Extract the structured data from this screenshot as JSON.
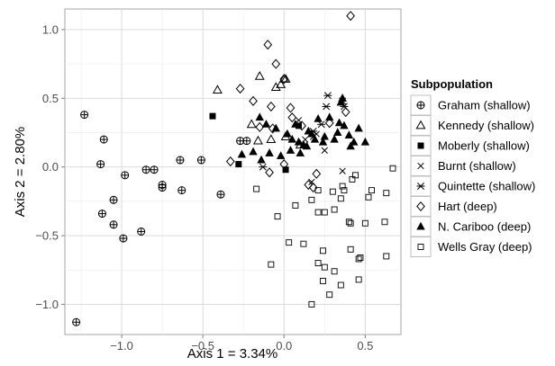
{
  "chart_data": {
    "type": "scatter",
    "xlabel": "Axis 1 = 3.34%",
    "ylabel": "Axis 2 = 2.80%",
    "xlim": [
      -1.35,
      0.72
    ],
    "ylim": [
      -1.22,
      1.15
    ],
    "x_ticks": [
      -1.0,
      -0.5,
      0.0,
      0.5
    ],
    "x_tick_labels": [
      "−1.0",
      "−0.5",
      "0.0",
      "0.5"
    ],
    "y_ticks": [
      -1.0,
      -0.5,
      0.0,
      0.5,
      1.0
    ],
    "y_tick_labels": [
      "−1.0",
      "−0.5",
      "0.0",
      "0.5",
      "1.0"
    ],
    "grid": true,
    "legend": {
      "title": "Subpopulation",
      "position": "right"
    },
    "series": [
      {
        "name": "Graham (shallow)",
        "marker": "circle-plus",
        "points": [
          [
            -1.28,
            -1.13
          ],
          [
            -1.23,
            0.38
          ],
          [
            -1.11,
            0.2
          ],
          [
            -1.13,
            0.02
          ],
          [
            -0.98,
            -0.06
          ],
          [
            -0.85,
            -0.02
          ],
          [
            -0.8,
            -0.02
          ],
          [
            -0.75,
            -0.13
          ],
          [
            -0.75,
            -0.15
          ],
          [
            -0.64,
            0.05
          ],
          [
            -0.63,
            -0.17
          ],
          [
            -0.51,
            0.05
          ],
          [
            -0.39,
            -0.2
          ],
          [
            -1.12,
            -0.34
          ],
          [
            -1.05,
            -0.24
          ],
          [
            -1.05,
            -0.42
          ],
          [
            -0.99,
            -0.52
          ],
          [
            -0.88,
            -0.47
          ],
          [
            -0.27,
            0.19
          ],
          [
            -0.23,
            0.19
          ]
        ]
      },
      {
        "name": "Kennedy (shallow)",
        "marker": "triangle-open",
        "points": [
          [
            -0.41,
            0.56
          ],
          [
            -0.15,
            0.66
          ],
          [
            -0.05,
            0.58
          ],
          [
            -0.02,
            0.6
          ],
          [
            0.0,
            0.64
          ],
          [
            0.01,
            0.64
          ],
          [
            -0.2,
            0.31
          ],
          [
            -0.16,
            0.19
          ],
          [
            -0.08,
            0.2
          ],
          [
            0.01,
            0.22
          ],
          [
            0.1,
            0.16
          ]
        ]
      },
      {
        "name": "Moberly (shallow)",
        "marker": "square-filled",
        "points": [
          [
            -0.44,
            0.37
          ],
          [
            0.01,
            -0.02
          ],
          [
            -0.28,
            0.02
          ],
          [
            0.09,
            0.3
          ]
        ]
      },
      {
        "name": "Burnt (shallow)",
        "marker": "x",
        "points": [
          [
            0.09,
            0.34
          ],
          [
            0.13,
            0.2
          ],
          [
            0.2,
            0.24
          ],
          [
            0.25,
            0.12
          ],
          [
            0.17,
            -0.11
          ],
          [
            0.36,
            -0.03
          ],
          [
            0.18,
            0.22
          ]
        ]
      },
      {
        "name": "Quintette (shallow)",
        "marker": "asterisk",
        "points": [
          [
            0.27,
            0.52
          ],
          [
            0.26,
            0.44
          ],
          [
            0.23,
            0.31
          ],
          [
            0.36,
            0.48
          ],
          [
            0.37,
            0.44
          ],
          [
            -0.13,
            0.0
          ],
          [
            0.18,
            0.26
          ]
        ]
      },
      {
        "name": "Hart (deep)",
        "marker": "diamond-open",
        "points": [
          [
            0.41,
            1.1
          ],
          [
            -0.1,
            0.89
          ],
          [
            -0.05,
            0.75
          ],
          [
            0.0,
            0.64
          ],
          [
            -0.27,
            0.57
          ],
          [
            -0.19,
            0.48
          ],
          [
            -0.08,
            0.44
          ],
          [
            0.04,
            0.43
          ],
          [
            0.05,
            0.36
          ],
          [
            0.11,
            0.3
          ],
          [
            -0.15,
            0.29
          ],
          [
            -0.07,
            0.28
          ],
          [
            0.38,
            0.4
          ],
          [
            0.28,
            0.32
          ],
          [
            -0.33,
            0.04
          ],
          [
            -0.09,
            -0.04
          ],
          [
            0.0,
            0.02
          ],
          [
            0.2,
            -0.05
          ],
          [
            0.15,
            -0.13
          ],
          [
            0.18,
            -0.15
          ]
        ]
      },
      {
        "name": "N. Cariboo (deep)",
        "marker": "triangle-filled",
        "points": [
          [
            0.36,
            0.5
          ],
          [
            0.35,
            0.47
          ],
          [
            -0.15,
            0.36
          ],
          [
            -0.11,
            0.31
          ],
          [
            -0.05,
            0.28
          ],
          [
            0.02,
            0.24
          ],
          [
            0.05,
            0.2
          ],
          [
            0.07,
            0.31
          ],
          [
            0.09,
            0.18
          ],
          [
            0.12,
            0.16
          ],
          [
            0.15,
            0.26
          ],
          [
            0.17,
            0.24
          ],
          [
            0.19,
            0.2
          ],
          [
            0.21,
            0.35
          ],
          [
            0.24,
            0.18
          ],
          [
            0.28,
            0.36
          ],
          [
            0.31,
            0.2
          ],
          [
            0.34,
            0.32
          ],
          [
            0.37,
            0.3
          ],
          [
            0.4,
            0.23
          ],
          [
            0.43,
            0.18
          ],
          [
            0.46,
            0.28
          ],
          [
            0.5,
            0.18
          ],
          [
            -0.26,
            0.09
          ],
          [
            -0.19,
            0.11
          ],
          [
            -0.14,
            0.05
          ],
          [
            -0.09,
            0.1
          ],
          [
            -0.02,
            0.08
          ],
          [
            0.04,
            0.12
          ],
          [
            0.1,
            0.1
          ],
          [
            0.14,
            0.15
          ],
          [
            0.25,
            0.22
          ],
          [
            0.33,
            0.25
          ],
          [
            0.41,
            0.15
          ]
        ]
      },
      {
        "name": "Wells Gray (deep)",
        "marker": "square-open",
        "points": [
          [
            0.67,
            -0.01
          ],
          [
            -0.17,
            -0.16
          ],
          [
            -0.04,
            -0.36
          ],
          [
            0.07,
            -0.28
          ],
          [
            0.17,
            -0.24
          ],
          [
            0.21,
            -0.17
          ],
          [
            0.3,
            -0.18
          ],
          [
            0.35,
            -0.23
          ],
          [
            0.36,
            -0.14
          ],
          [
            0.44,
            -0.06
          ],
          [
            0.54,
            -0.17
          ],
          [
            0.63,
            -0.19
          ],
          [
            0.21,
            -0.33
          ],
          [
            0.25,
            -0.33
          ],
          [
            0.31,
            -0.31
          ],
          [
            0.4,
            -0.4
          ],
          [
            0.41,
            -0.41
          ],
          [
            0.5,
            -0.41
          ],
          [
            0.62,
            -0.4
          ],
          [
            0.03,
            -0.55
          ],
          [
            0.12,
            -0.56
          ],
          [
            0.24,
            -0.61
          ],
          [
            0.21,
            -0.7
          ],
          [
            0.25,
            -0.73
          ],
          [
            0.31,
            -0.76
          ],
          [
            0.41,
            -0.6
          ],
          [
            0.46,
            -0.67
          ],
          [
            0.47,
            -0.66
          ],
          [
            0.63,
            -0.65
          ],
          [
            0.24,
            -0.83
          ],
          [
            0.46,
            -0.82
          ],
          [
            0.35,
            -0.86
          ],
          [
            0.28,
            -0.93
          ],
          [
            -0.08,
            -0.71
          ],
          [
            0.17,
            -1.0
          ],
          [
            0.37,
            -0.17
          ],
          [
            0.42,
            -0.09
          ],
          [
            0.52,
            -0.22
          ]
        ]
      }
    ]
  }
}
